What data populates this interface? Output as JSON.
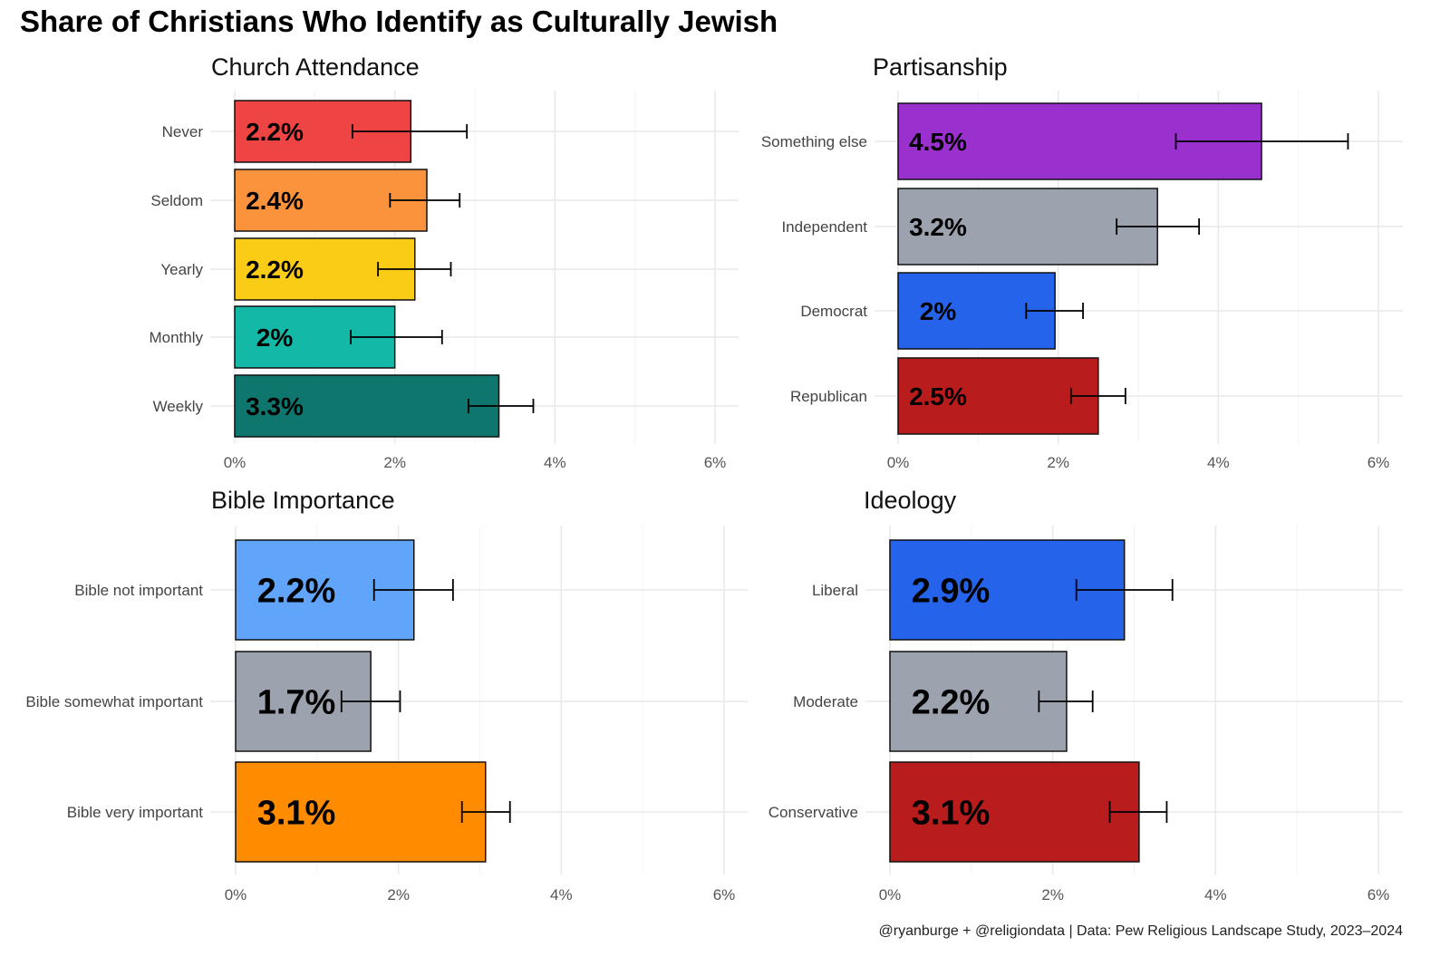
{
  "title": "Share of Christians Who Identify as Culturally Jewish",
  "caption": "@ryanburge + @religiondata | Data: Pew Religious Landscape Study, 2023–2024",
  "chart_data": [
    {
      "type": "bar",
      "orientation": "horizontal",
      "title": "Church Attendance",
      "xlim": [
        0,
        6
      ],
      "xticks": [
        "0%",
        "2%",
        "4%",
        "6%"
      ],
      "grid": true,
      "categories": [
        "Never",
        "Seldom",
        "Yearly",
        "Monthly",
        "Weekly"
      ],
      "values": [
        2.2,
        2.4,
        2.25,
        2.0,
        3.3
      ],
      "labels": [
        "2.2%",
        "2.4%",
        "2.2%",
        "2%",
        "3.3%"
      ],
      "ci_low": [
        1.47,
        1.94,
        1.79,
        1.45,
        2.92
      ],
      "ci_high": [
        2.9,
        2.81,
        2.7,
        2.59,
        3.73
      ],
      "colors": [
        "#EF4444",
        "#FB923C",
        "#FACC15",
        "#14B8A6",
        "#0F766E"
      ]
    },
    {
      "type": "bar",
      "orientation": "horizontal",
      "title": "Partisanship",
      "xlim": [
        0,
        6
      ],
      "xticks": [
        "0%",
        "2%",
        "4%",
        "6%"
      ],
      "grid": true,
      "categories": [
        "Something else",
        "Independent",
        "Democrat",
        "Republican"
      ],
      "values": [
        4.54,
        3.24,
        1.96,
        2.5
      ],
      "labels": [
        "4.5%",
        "3.2%",
        "2%",
        "2.5%"
      ],
      "ci_low": [
        3.47,
        2.73,
        1.6,
        2.16
      ],
      "ci_high": [
        5.62,
        3.76,
        2.31,
        2.84
      ],
      "colors": [
        "#9A30CE",
        "#9CA3AF",
        "#2563EB",
        "#B91C1C"
      ]
    },
    {
      "type": "bar",
      "orientation": "horizontal",
      "title": "Bible Importance",
      "xlim": [
        0,
        6
      ],
      "xticks": [
        "0%",
        "2%",
        "4%",
        "6%"
      ],
      "grid": true,
      "categories": [
        "Bible not important",
        "Bible somewhat important",
        "Bible very important"
      ],
      "values": [
        2.19,
        1.66,
        3.07
      ],
      "labels": [
        "2.2%",
        "1.7%",
        "3.1%"
      ],
      "ci_low": [
        1.7,
        1.3,
        2.78
      ],
      "ci_high": [
        2.67,
        2.02,
        3.37
      ],
      "colors": [
        "#60A5FA",
        "#9CA3AF",
        "#FF8C00"
      ]
    },
    {
      "type": "bar",
      "orientation": "horizontal",
      "title": "Ideology",
      "xlim": [
        0,
        6
      ],
      "xticks": [
        "0%",
        "2%",
        "4%",
        "6%"
      ],
      "grid": true,
      "categories": [
        "Liberal",
        "Moderate",
        "Conservative"
      ],
      "values": [
        2.88,
        2.17,
        3.06
      ],
      "labels": [
        "2.9%",
        "2.2%",
        "3.1%"
      ],
      "ci_low": [
        2.29,
        1.83,
        2.7
      ],
      "ci_high": [
        3.47,
        2.49,
        3.4
      ],
      "colors": [
        "#2563EB",
        "#9CA3AF",
        "#B91C1C"
      ]
    }
  ]
}
